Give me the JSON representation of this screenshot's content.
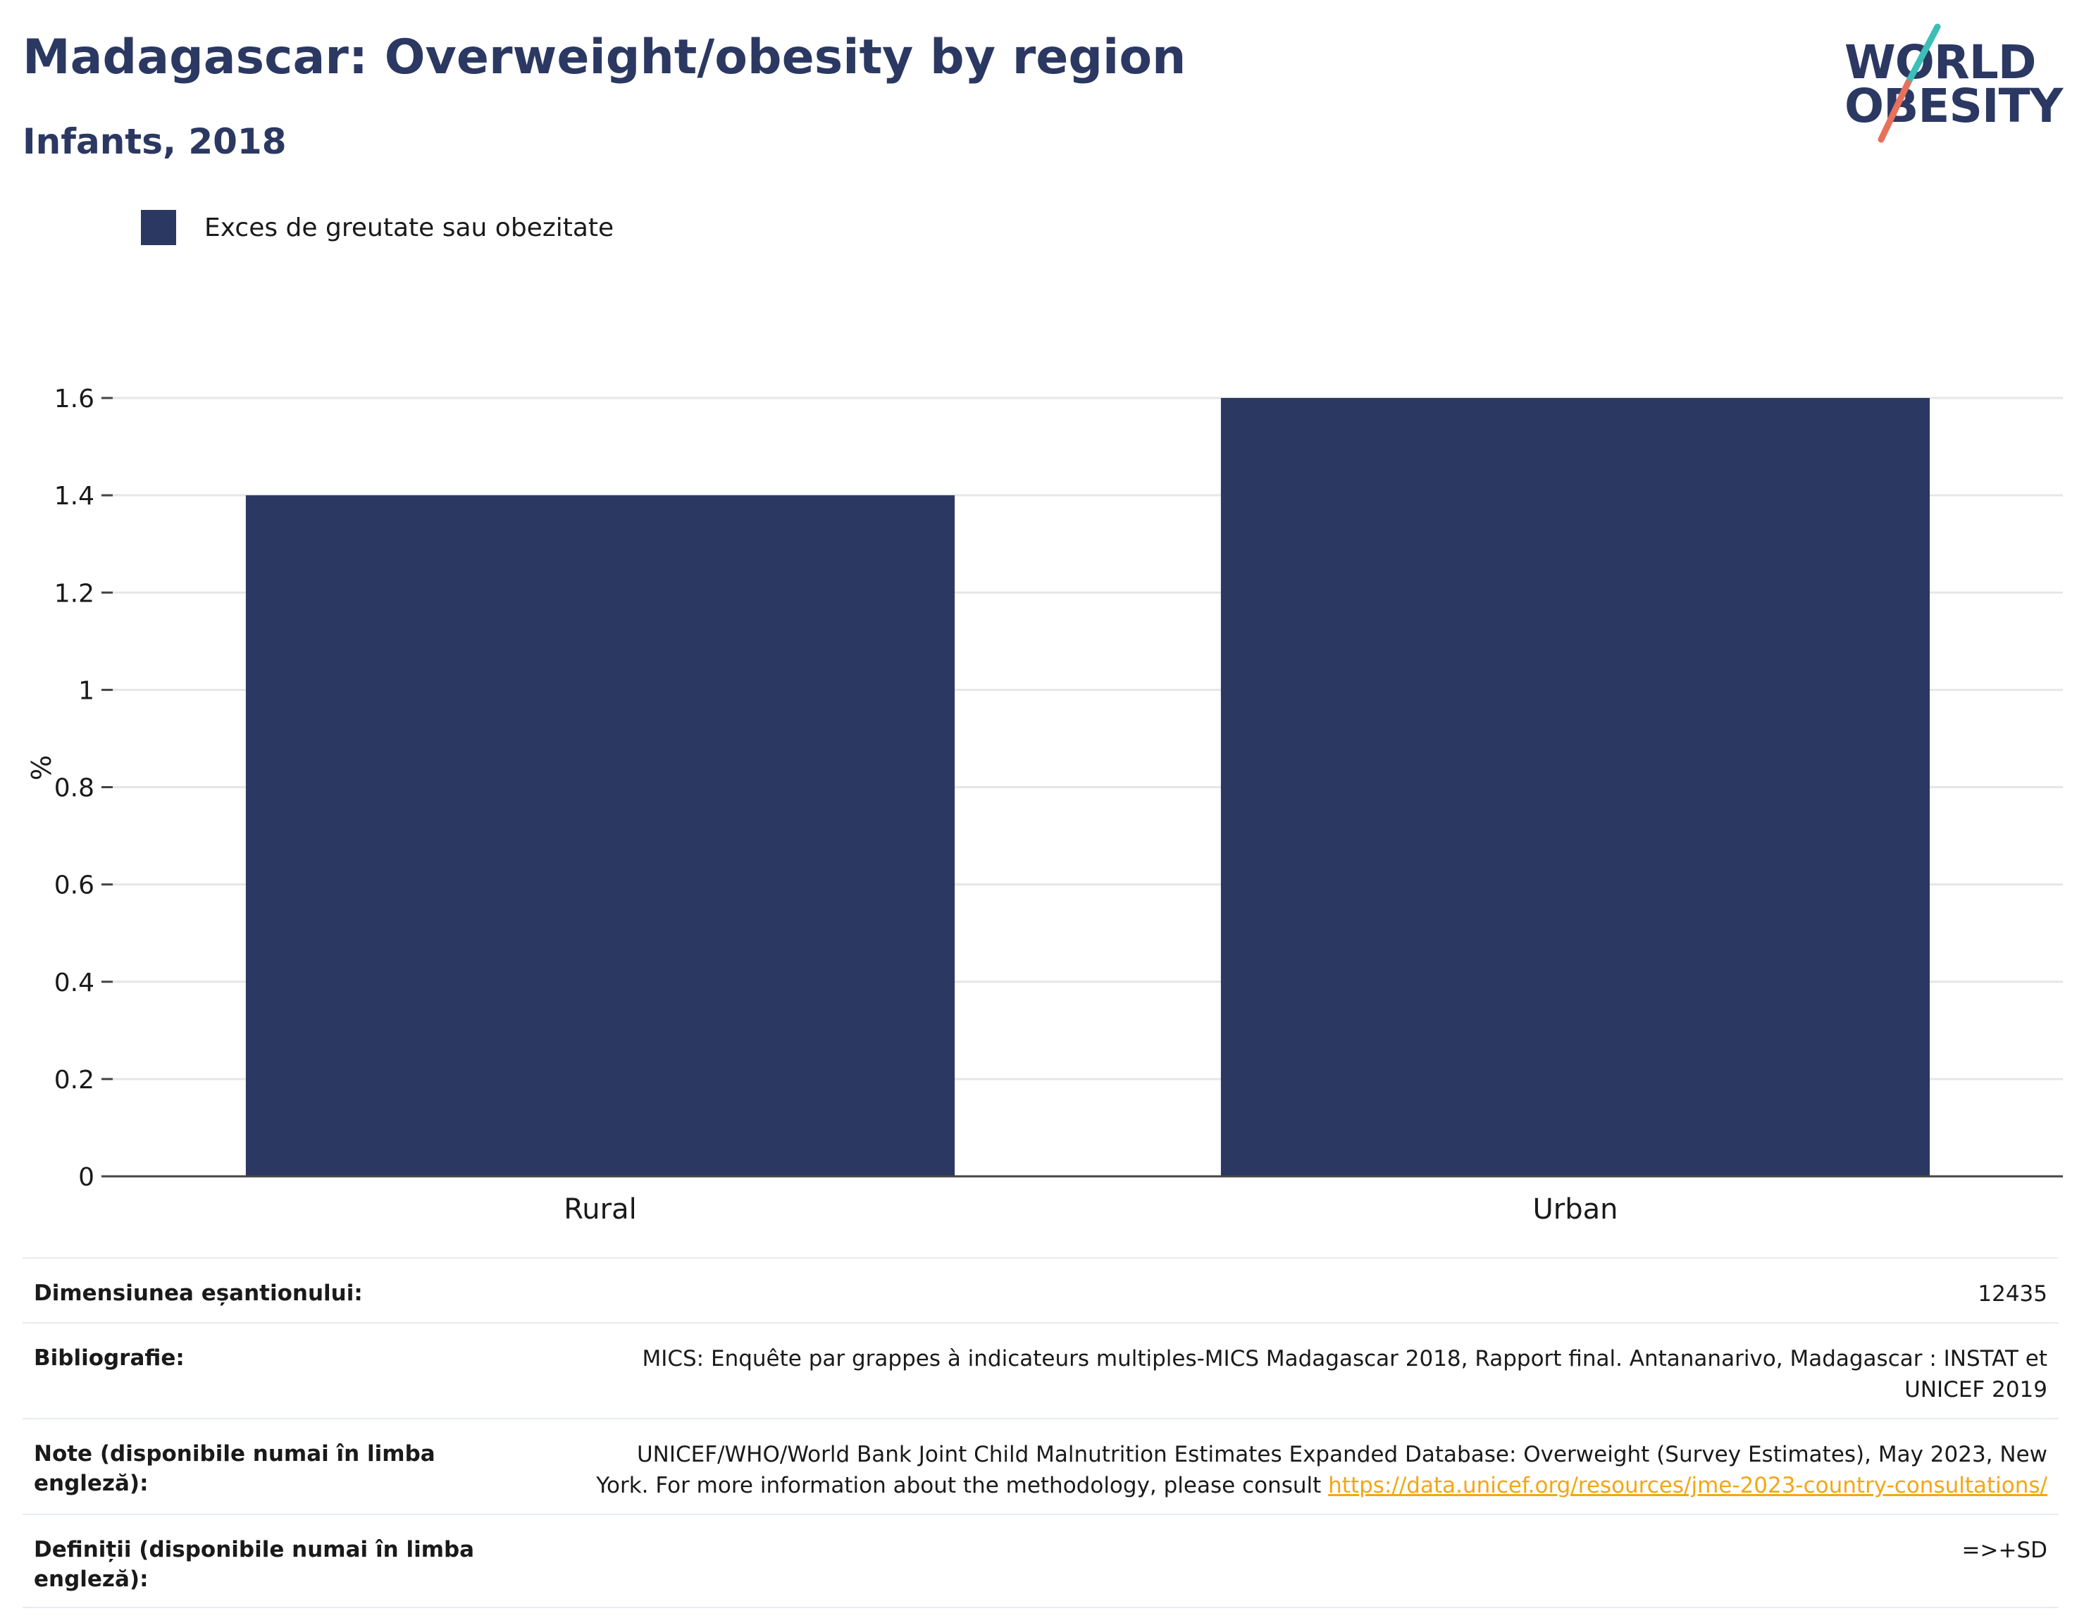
{
  "header": {
    "title": "Madagascar: Overweight/obesity by region",
    "subtitle": "Infants, 2018"
  },
  "logo": {
    "line1": "WORLD",
    "line2": "OBESITY"
  },
  "legend": {
    "label": "Exces de greutate sau obezitate"
  },
  "colors": {
    "bar": "#2b3862",
    "title": "#2b3862",
    "grid": "#e6e6e6",
    "link": "#f3a712"
  },
  "chart_data": {
    "type": "bar",
    "categories": [
      "Rural",
      "Urban"
    ],
    "series": [
      {
        "name": "Exces de greutate sau obezitate",
        "values": [
          1.4,
          1.6
        ]
      }
    ],
    "ylabel": "%",
    "xlabel": "",
    "ylim": [
      0,
      1.6
    ],
    "yticks": [
      "0",
      "0.2",
      "0.4",
      "0.6",
      "0.8",
      "1",
      "1.2",
      "1.4",
      "1.6"
    ],
    "grid": true,
    "legend_position": "top-left"
  },
  "info": {
    "sample_size": {
      "label": "Dimensiunea eșantionului:",
      "value": "12435"
    },
    "bibliography": {
      "label": "Bibliografie:",
      "line1": "MICS: Enquête par grappes à indicateurs multiples-MICS Madagascar 2018, Rapport final. Antananarivo, Madagascar : INSTAT et",
      "line2": "UNICEF 2019"
    },
    "notes": {
      "label": "Note (disponibile numai în limba engleză):",
      "line1": "UNICEF/WHO/World Bank Joint Child Malnutrition Estimates Expanded Database: Overweight (Survey Estimates), May 2023, New",
      "line2": "York. For more information about the methodology, please consult",
      "link": "https://data.unicef.org/resources/jme-2023-country-consultations/"
    },
    "definitions": {
      "label": "Definiții (disponibile numai în limba engleză):",
      "value": "=>+SD"
    }
  }
}
